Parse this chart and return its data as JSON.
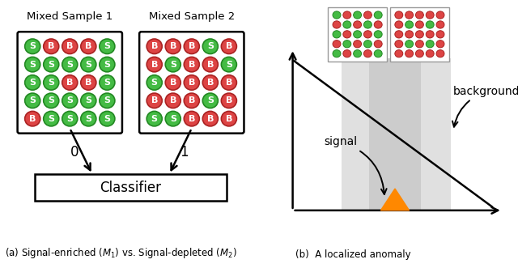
{
  "bg_color": "#ffffff",
  "green_color": "#44bb44",
  "red_color": "#dd4444",
  "green_dark": "#228822",
  "red_dark": "#aa2222",
  "orange_color": "#ff8800",
  "light_gray": "#cccccc",
  "lighter_gray": "#e0e0e0",
  "sample1_grid": [
    [
      "S",
      "B",
      "B",
      "B",
      "S"
    ],
    [
      "S",
      "S",
      "S",
      "S",
      "S"
    ],
    [
      "S",
      "S",
      "B",
      "B",
      "S"
    ],
    [
      "S",
      "S",
      "S",
      "S",
      "S"
    ],
    [
      "B",
      "S",
      "S",
      "S",
      "S"
    ]
  ],
  "sample2_grid": [
    [
      "B",
      "B",
      "B",
      "S",
      "B"
    ],
    [
      "B",
      "S",
      "B",
      "B",
      "S"
    ],
    [
      "S",
      "B",
      "B",
      "B",
      "B"
    ],
    [
      "B",
      "B",
      "B",
      "S",
      "B"
    ],
    [
      "S",
      "S",
      "B",
      "B",
      "B"
    ]
  ],
  "mini_grid1": [
    [
      "S",
      "B",
      "S",
      "B",
      "S"
    ],
    [
      "B",
      "S",
      "B",
      "S",
      "B"
    ],
    [
      "S",
      "B",
      "S",
      "B",
      "S"
    ],
    [
      "B",
      "S",
      "B",
      "S",
      "B"
    ],
    [
      "S",
      "B",
      "S",
      "B",
      "S"
    ]
  ],
  "mini_grid2": [
    [
      "B",
      "B",
      "B",
      "B",
      "B"
    ],
    [
      "B",
      "S",
      "B",
      "S",
      "B"
    ],
    [
      "B",
      "B",
      "B",
      "B",
      "B"
    ],
    [
      "B",
      "S",
      "B",
      "S",
      "B"
    ],
    [
      "B",
      "B",
      "B",
      "B",
      "B"
    ]
  ],
  "caption_left": "(a) Signal-enriched $(M_1)$ vs. Signal-depleted $(M_2)$",
  "caption_right": "(b)  A localized anomaly",
  "classifier_label": "Classifier",
  "label_0": "0",
  "label_1": "1",
  "signal_label": "signal",
  "background_label": "background"
}
